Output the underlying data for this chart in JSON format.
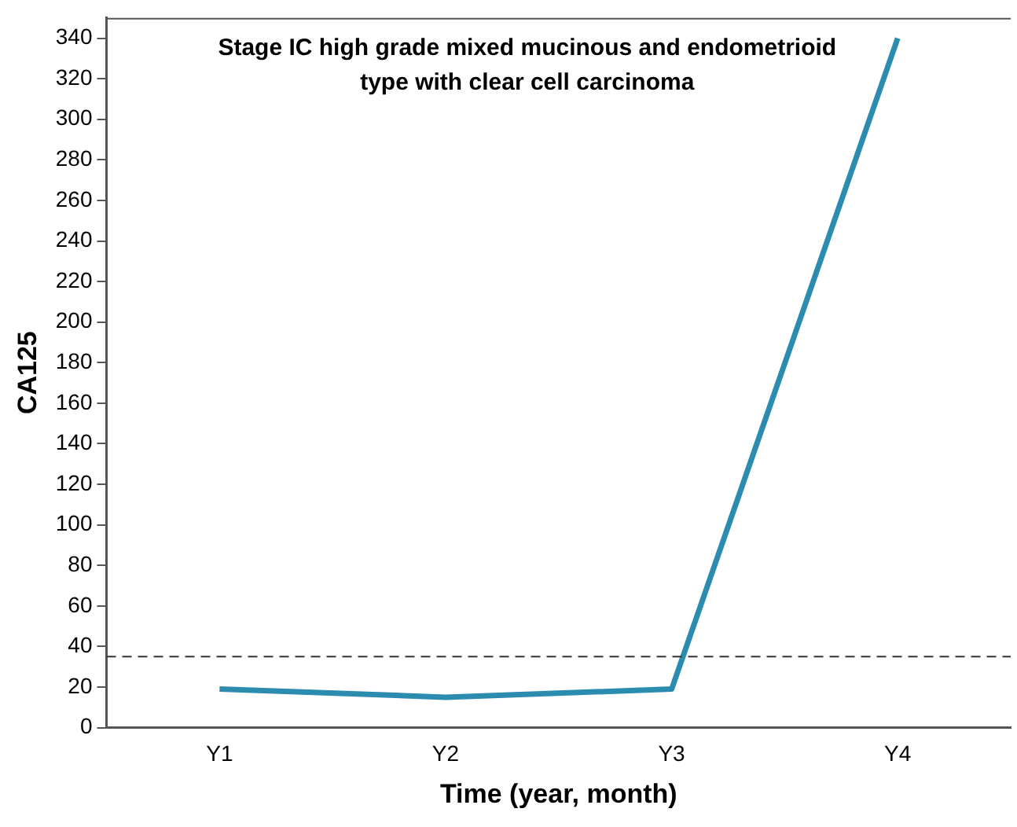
{
  "chart_data": {
    "type": "line",
    "title": "Stage IC high grade mixed mucinous and endometrioid\ntype with clear cell carcinoma",
    "xlabel": "Time (year, month)",
    "ylabel": "CA125",
    "categories": [
      "Y1",
      "Y2",
      "Y3",
      "Y4"
    ],
    "series": [
      {
        "color": "#2b8cb0",
        "values": [
          19,
          15,
          19,
          340
        ]
      }
    ],
    "ylim": [
      0,
      350
    ],
    "yticks": [
      0,
      20,
      40,
      60,
      80,
      100,
      120,
      140,
      160,
      180,
      200,
      220,
      240,
      260,
      280,
      300,
      320,
      340
    ],
    "ref_lines": [
      {
        "axis": "y",
        "value": 35,
        "line_style": "dashed",
        "color": "#333333"
      }
    ],
    "grid": false,
    "legend": false,
    "marker": "none",
    "line_style": "solid"
  }
}
